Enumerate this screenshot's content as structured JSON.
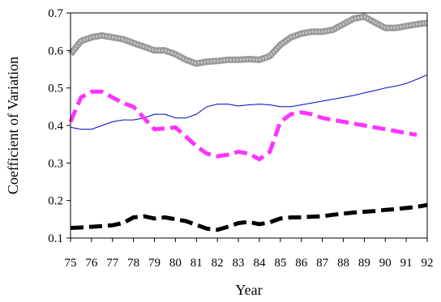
{
  "chart_data": {
    "type": "line",
    "xlabel": "Year",
    "ylabel": "Coefficient of Variation",
    "xlim": [
      75,
      92
    ],
    "ylim": [
      0.1,
      0.7
    ],
    "x_ticks": [
      "75",
      "76",
      "77",
      "78",
      "79",
      "80",
      "81",
      "82",
      "83",
      "84",
      "85",
      "86",
      "87",
      "88",
      "89",
      "90",
      "91",
      "92"
    ],
    "y_ticks": [
      "0.1",
      "0.2",
      "0.3",
      "0.4",
      "0.5",
      "0.6",
      "0.7"
    ],
    "grid": false,
    "legend": "none",
    "series": [
      {
        "color": "#999999",
        "style": "thick-gray-textured",
        "x": [
          75,
          75.5,
          76,
          76.5,
          77,
          77.5,
          78,
          78.5,
          79,
          79.5,
          80,
          80.5,
          81,
          81.5,
          82,
          82.5,
          83,
          83.5,
          84,
          84.5,
          85,
          85.5,
          86,
          86.5,
          87,
          87.5,
          88,
          88.5,
          89,
          89.5,
          90,
          90.5,
          91,
          91.5,
          92
        ],
        "y": [
          0.59,
          0.625,
          0.635,
          0.64,
          0.635,
          0.63,
          0.62,
          0.61,
          0.6,
          0.6,
          0.59,
          0.575,
          0.565,
          0.57,
          0.572,
          0.575,
          0.575,
          0.577,
          0.575,
          0.585,
          0.615,
          0.635,
          0.645,
          0.65,
          0.65,
          0.655,
          0.67,
          0.685,
          0.69,
          0.675,
          0.66,
          0.66,
          0.665,
          0.67,
          0.673
        ]
      },
      {
        "color": "#0000cc",
        "style": "thin-solid",
        "x": [
          75,
          75.5,
          76,
          76.5,
          77,
          77.5,
          78,
          78.5,
          79,
          79.5,
          80,
          80.5,
          81,
          81.5,
          82,
          82.5,
          83,
          83.5,
          84,
          84.5,
          85,
          85.5,
          86,
          86.5,
          87,
          87.5,
          88,
          88.5,
          89,
          89.5,
          90,
          90.5,
          91,
          91.5,
          92
        ],
        "y": [
          0.395,
          0.39,
          0.39,
          0.4,
          0.41,
          0.415,
          0.415,
          0.42,
          0.43,
          0.43,
          0.42,
          0.42,
          0.43,
          0.45,
          0.457,
          0.457,
          0.452,
          0.455,
          0.457,
          0.455,
          0.45,
          0.45,
          0.455,
          0.46,
          0.465,
          0.47,
          0.475,
          0.48,
          0.487,
          0.493,
          0.5,
          0.505,
          0.512,
          0.523,
          0.535
        ]
      },
      {
        "color": "#ff33ff",
        "style": "thick-dashed",
        "x": [
          75,
          75.5,
          76,
          76.5,
          77,
          77.5,
          78,
          78.5,
          79,
          79.5,
          80,
          80.5,
          81,
          81.5,
          82,
          82.5,
          83,
          83.5,
          84,
          84.5,
          85,
          85.5,
          86,
          86.5,
          87,
          87.5,
          88,
          88.5,
          89,
          89.5,
          90,
          90.5,
          91,
          91.5
        ],
        "y": [
          0.41,
          0.475,
          0.49,
          0.49,
          0.475,
          0.46,
          0.45,
          0.42,
          0.39,
          0.392,
          0.395,
          0.37,
          0.345,
          0.325,
          0.318,
          0.322,
          0.33,
          0.325,
          0.31,
          0.33,
          0.41,
          0.43,
          0.435,
          0.43,
          0.42,
          0.415,
          0.41,
          0.405,
          0.4,
          0.395,
          0.39,
          0.385,
          0.38,
          0.375
        ]
      },
      {
        "color": "#000000",
        "style": "thick-dashed",
        "x": [
          75,
          75.5,
          76,
          76.5,
          77,
          77.5,
          78,
          78.5,
          79,
          79.5,
          80,
          80.5,
          81,
          81.5,
          82,
          82.5,
          83,
          83.5,
          84,
          84.5,
          85,
          85.5,
          86,
          86.5,
          87,
          87.5,
          88,
          88.5,
          89,
          89.5,
          90,
          90.5,
          91,
          91.5,
          92
        ],
        "y": [
          0.127,
          0.128,
          0.13,
          0.132,
          0.134,
          0.14,
          0.155,
          0.158,
          0.152,
          0.155,
          0.15,
          0.145,
          0.135,
          0.125,
          0.122,
          0.13,
          0.14,
          0.143,
          0.137,
          0.142,
          0.152,
          0.155,
          0.155,
          0.157,
          0.158,
          0.162,
          0.165,
          0.168,
          0.17,
          0.172,
          0.175,
          0.177,
          0.18,
          0.183,
          0.188
        ]
      }
    ]
  }
}
